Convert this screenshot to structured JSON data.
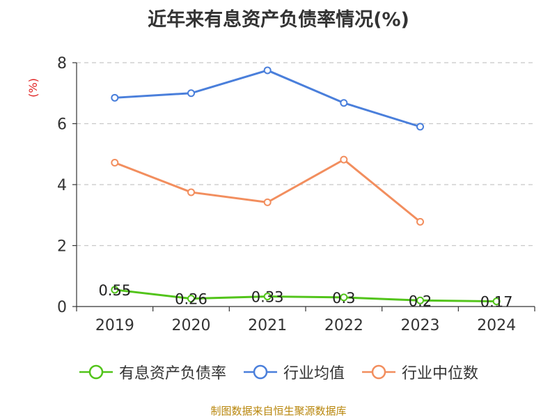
{
  "chart_data": {
    "type": "line",
    "title": "近年来有息资产负债率情况(%)",
    "ylabel": "(%)",
    "categories": [
      "2019",
      "2020",
      "2021",
      "2022",
      "2023",
      "2024"
    ],
    "ylim": [
      0,
      8
    ],
    "yticks": [
      "0",
      "2",
      "4",
      "6",
      "8"
    ],
    "grid": true,
    "legend_position": "bottom",
    "series": [
      {
        "name": "有息资产负债率",
        "color": "#52c41a",
        "values": [
          0.55,
          0.26,
          0.33,
          0.3,
          0.2,
          0.17
        ],
        "labels": [
          "0.55",
          "0.26",
          "0.33",
          "0.3",
          "0.2",
          "0.17"
        ]
      },
      {
        "name": "行业均值",
        "color": "#4a7fdb",
        "values": [
          6.85,
          7.0,
          7.75,
          6.68,
          5.9,
          null
        ]
      },
      {
        "name": "行业中位数",
        "color": "#f28e5e",
        "values": [
          4.72,
          3.75,
          3.42,
          4.82,
          2.78,
          null
        ]
      }
    ]
  },
  "source": "制图数据来自恒生聚源数据库"
}
